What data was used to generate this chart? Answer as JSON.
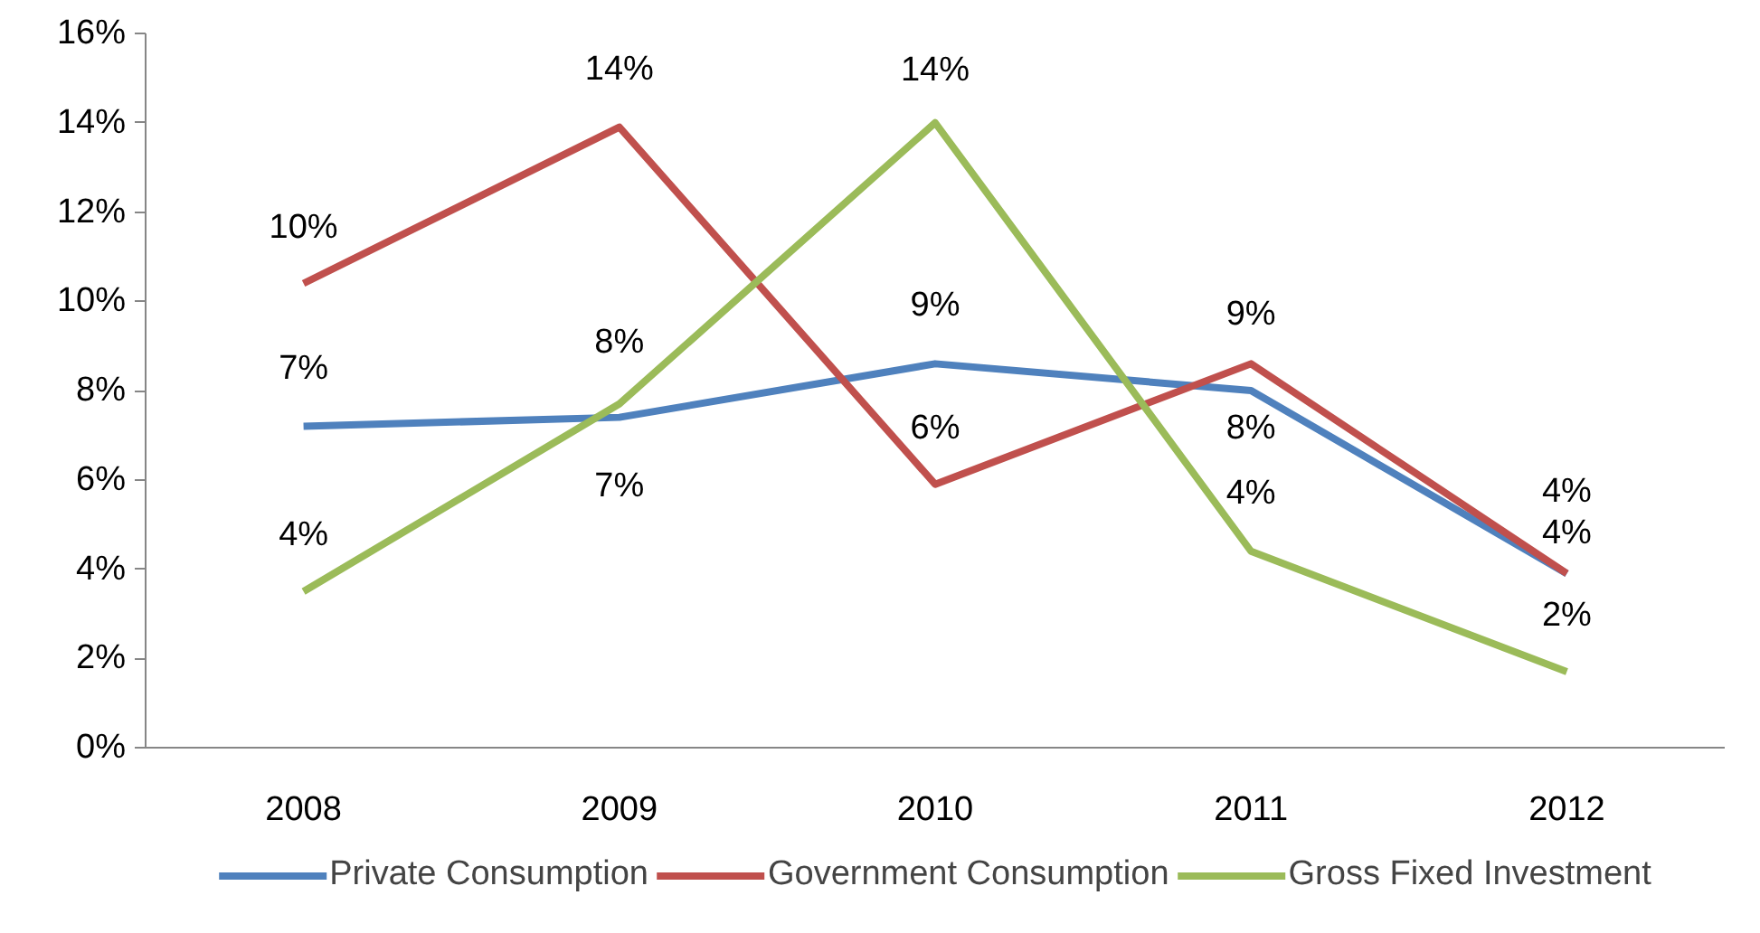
{
  "chart_data": {
    "type": "line",
    "categories": [
      "2008",
      "2009",
      "2010",
      "2011",
      "2012"
    ],
    "series": [
      {
        "name": "Private Consumption",
        "color": "#4f81bd",
        "values": [
          7.2,
          7.4,
          8.6,
          8.0,
          3.9
        ],
        "value_labels": [
          "7%",
          "7%",
          "9%",
          "8%",
          "4%"
        ]
      },
      {
        "name": "Government Consumption",
        "color": "#c0504d",
        "values": [
          10.4,
          13.9,
          5.9,
          8.6,
          3.9
        ],
        "value_labels": [
          "10%",
          "14%",
          "6%",
          "9%",
          "4%"
        ]
      },
      {
        "name": "Gross Fixed Investment",
        "color": "#9bbb59",
        "values": [
          3.5,
          7.7,
          14.0,
          4.4,
          1.7
        ],
        "value_labels": [
          "4%",
          "8%",
          "14%",
          "4%",
          "2%"
        ]
      }
    ],
    "ylim": [
      0,
      16
    ],
    "yticks": [
      {
        "value": 0,
        "label": "0%"
      },
      {
        "value": 2,
        "label": "2%"
      },
      {
        "value": 4,
        "label": "4%"
      },
      {
        "value": 6,
        "label": "6%"
      },
      {
        "value": 8,
        "label": "8%"
      },
      {
        "value": 10,
        "label": "10%"
      },
      {
        "value": 12,
        "label": "12%"
      },
      {
        "value": 14,
        "label": "14%"
      },
      {
        "value": 16,
        "label": "16%"
      }
    ],
    "grid": false,
    "legend": "bottom",
    "marker": "none",
    "line_style": "solid"
  }
}
